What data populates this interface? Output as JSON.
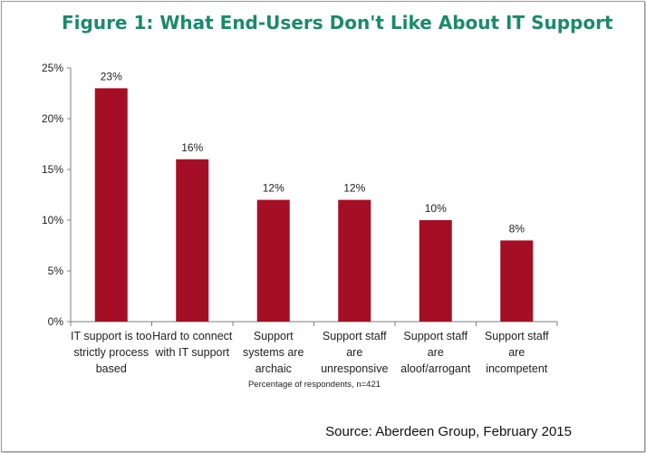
{
  "title": "Figure 1: What End-Users Don't Like About IT Support",
  "source": "Source: Aberdeen Group, February 2015",
  "colors": {
    "bar": "#a50f26",
    "title": "#1b8a6b",
    "axis": "#7f7f7f"
  },
  "chart_data": {
    "type": "bar",
    "title": "Figure 1: What End-Users Don't Like About IT Support",
    "xlabel": "Percentage of respondents, n=421",
    "ylabel": "",
    "ylim": [
      0,
      25
    ],
    "yticks": [
      "0%",
      "5%",
      "10%",
      "15%",
      "20%",
      "25%"
    ],
    "categories": [
      "IT support is too strictly process based",
      "Hard to connect with IT support",
      "Support systems are archaic",
      "Support staff are unresponsive",
      "Support staff are aloof/arrogant",
      "Support staff are incompetent"
    ],
    "category_lines": [
      [
        "IT support is too",
        "strictly process",
        "based"
      ],
      [
        "Hard to connect",
        "with IT support"
      ],
      [
        "Support",
        "systems are",
        "archaic"
      ],
      [
        "Support staff",
        "are",
        "unresponsive"
      ],
      [
        "Support staff",
        "are",
        "aloof/arrogant"
      ],
      [
        "Support staff",
        "are",
        "incompetent"
      ]
    ],
    "values": [
      23,
      16,
      12,
      12,
      10,
      8
    ],
    "data_labels": [
      "23%",
      "16%",
      "12%",
      "12%",
      "10%",
      "8%"
    ],
    "grid": false,
    "legend": "none"
  }
}
